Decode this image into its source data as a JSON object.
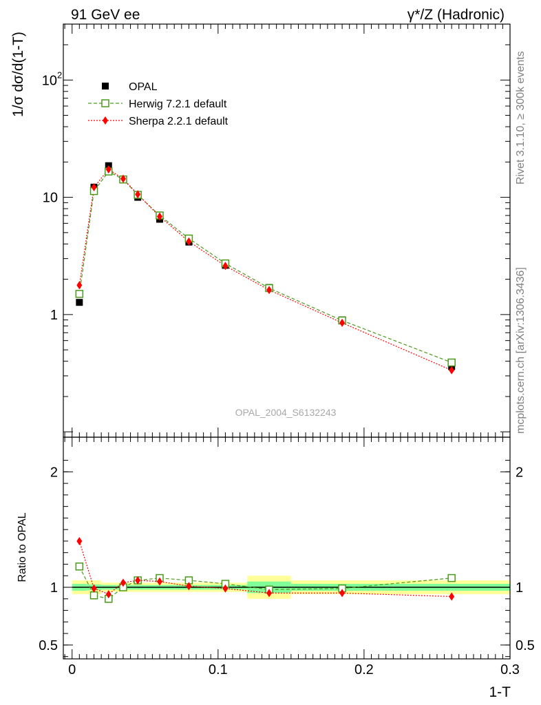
{
  "header": {
    "left": "91 GeV ee",
    "right": "γ*/Z (Hadronic)"
  },
  "side_labels": {
    "rivet": "Rivet 3.1.10, ≥ 300k events",
    "mcplots": "mcplots.cern.ch [arXiv:1306.3436]"
  },
  "watermark": "OPAL_2004_S6132243",
  "chart_data": [
    {
      "type": "scatter",
      "panel": "main",
      "ylabel": "1/σ dσ/d(1-T)",
      "yscale": "log",
      "ylim": [
        0.09,
        300
      ],
      "xlim": [
        -0.006,
        0.3
      ],
      "ytick_labels": [
        "1",
        "10",
        "10²"
      ],
      "legend_position": "top-left",
      "x": [
        0.005,
        0.015,
        0.025,
        0.035,
        0.045,
        0.06,
        0.08,
        0.105,
        0.135,
        0.185,
        0.26
      ],
      "series": [
        {
          "name": "OPAL",
          "marker": "filled-square",
          "color": "#000000",
          "values": [
            1.27,
            12.2,
            18.6,
            14.1,
            10.0,
            6.5,
            4.15,
            2.63,
            1.7,
            0.9,
            0.36
          ]
        },
        {
          "name": "Herwig 7.2.1 default",
          "marker": "open-square",
          "line": "dashed",
          "color": "#4a9a1a",
          "values": [
            1.5,
            11.3,
            16.6,
            14.2,
            10.5,
            7.0,
            4.45,
            2.73,
            1.68,
            0.89,
            0.39
          ]
        },
        {
          "name": "Sherpa 2.2.1 default",
          "marker": "filled-diamond",
          "line": "dotted",
          "color": "#ff0000",
          "values": [
            1.78,
            12.2,
            17.3,
            14.4,
            10.6,
            6.85,
            4.2,
            2.6,
            1.62,
            0.85,
            0.335
          ]
        }
      ]
    },
    {
      "type": "scatter",
      "panel": "ratio",
      "ylabel": "Ratio to OPAL",
      "xlabel": "1-T",
      "xlim": [
        -0.006,
        0.3
      ],
      "ylim": [
        0.38,
        2.3
      ],
      "ytick_labels": [
        "0.5",
        "1",
        "2"
      ],
      "xtick_labels": [
        "0",
        "0.1",
        "0.2",
        "0.3"
      ],
      "x": [
        0.005,
        0.015,
        0.025,
        0.035,
        0.045,
        0.06,
        0.08,
        0.105,
        0.135,
        0.185,
        0.26
      ],
      "bins": [
        [
          0.0,
          0.01
        ],
        [
          0.01,
          0.02
        ],
        [
          0.02,
          0.03
        ],
        [
          0.03,
          0.04
        ],
        [
          0.04,
          0.05
        ],
        [
          0.05,
          0.07
        ],
        [
          0.07,
          0.09
        ],
        [
          0.09,
          0.12
        ],
        [
          0.12,
          0.15
        ],
        [
          0.15,
          0.22
        ],
        [
          0.22,
          0.3
        ]
      ],
      "band_green": [
        0.03,
        0.025,
        0.02,
        0.02,
        0.02,
        0.02,
        0.02,
        0.02,
        0.05,
        0.03,
        0.03
      ],
      "band_yellow": [
        0.06,
        0.06,
        0.04,
        0.04,
        0.04,
        0.04,
        0.04,
        0.04,
        0.1,
        0.06,
        0.06
      ],
      "series": [
        {
          "name": "Herwig 7.2.1 default",
          "color": "#4a9a1a",
          "values": [
            1.18,
            0.93,
            0.9,
            1.0,
            1.06,
            1.08,
            1.06,
            1.03,
            0.98,
            0.99,
            1.08
          ]
        },
        {
          "name": "Sherpa 2.2.1 default",
          "color": "#ff0000",
          "values": [
            1.4,
            0.99,
            0.94,
            1.04,
            1.06,
            1.05,
            1.01,
            0.99,
            0.95,
            0.95,
            0.92
          ]
        }
      ]
    }
  ]
}
